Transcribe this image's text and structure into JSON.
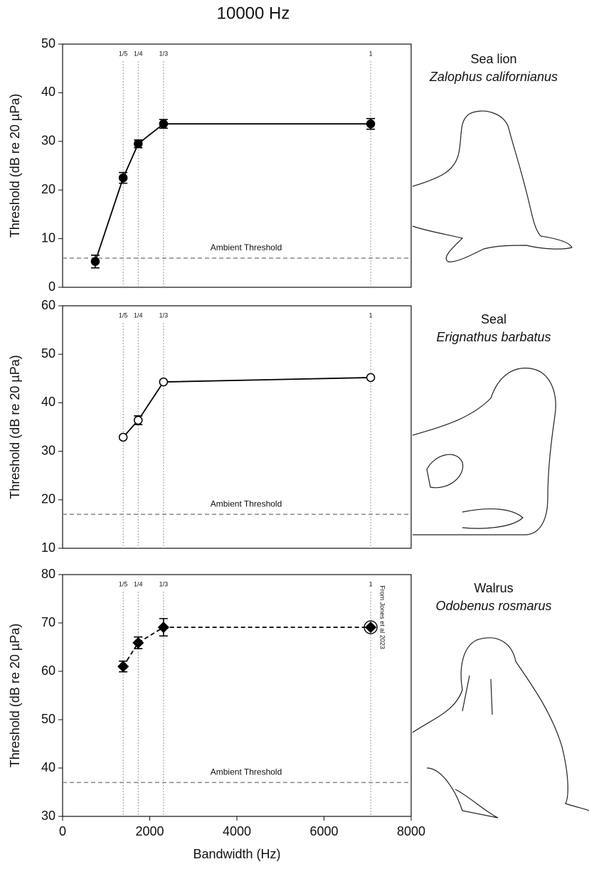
{
  "title": "10000 Hz",
  "chart_data": [
    {
      "type": "line",
      "x": [
        750,
        1390,
        1735,
        2316,
        7071
      ],
      "values": [
        5.3,
        22.5,
        29.5,
        33.6,
        33.6
      ],
      "errors": [
        1.3,
        1.1,
        0.8,
        0.9,
        1.1
      ],
      "marker": "circle",
      "marker_fill": "#000000",
      "color": "#000000",
      "linestyle": "solid",
      "xlim": [
        0,
        8000
      ],
      "ylim": [
        0,
        50
      ],
      "yticks": [
        0,
        10,
        20,
        30,
        40,
        50
      ],
      "ylabel": "Threshold (dB re 20 µPa)",
      "reference_lines": [
        {
          "value": 1390,
          "label": "1/5"
        },
        {
          "value": 1735,
          "label": "1/4"
        },
        {
          "value": 2316,
          "label": "1/3"
        },
        {
          "value": 7071,
          "label": "1"
        }
      ],
      "hline": {
        "value": 6,
        "label": "Ambient Threshold"
      },
      "species": "Sea lion",
      "species_latin": "Zalophus californianus"
    },
    {
      "type": "line",
      "x": [
        1390,
        1735,
        2316,
        7071
      ],
      "values": [
        32.9,
        36.4,
        44.3,
        45.2
      ],
      "errors": [
        null,
        0.9,
        null,
        null
      ],
      "marker": "circle",
      "marker_fill": "#ffffff",
      "color": "#000000",
      "linestyle": "solid",
      "xlim": [
        0,
        8000
      ],
      "ylim": [
        10,
        60
      ],
      "yticks": [
        10,
        20,
        30,
        40,
        50,
        60
      ],
      "ylabel": "Threshold (dB re 20 µPa)",
      "reference_lines": [
        {
          "value": 1390,
          "label": "1/5"
        },
        {
          "value": 1735,
          "label": "1/4"
        },
        {
          "value": 2316,
          "label": "1/3"
        },
        {
          "value": 7071,
          "label": "1"
        }
      ],
      "hline": {
        "value": 17,
        "label": "Ambient Threshold"
      },
      "species": "Seal",
      "species_latin": "Erignathus barbatus"
    },
    {
      "type": "line",
      "x": [
        1390,
        1735,
        2316,
        7071
      ],
      "values": [
        61,
        65.9,
        69.1,
        69.1
      ],
      "errors": [
        1.1,
        1.2,
        1.8,
        null
      ],
      "marker": "diamond",
      "marker_fill": "#000000",
      "color": "#000000",
      "linestyle": "dashed",
      "xlim": [
        0,
        8000
      ],
      "ylim": [
        30,
        80
      ],
      "yticks": [
        30,
        40,
        50,
        60,
        70,
        80
      ],
      "ylabel": "Threshold (dB re 20 µPa)",
      "xticks": [
        0,
        2000,
        4000,
        6000,
        8000
      ],
      "xlabel": "Bandwidth (Hz)",
      "reference_lines": [
        {
          "value": 1390,
          "label": "1/5"
        },
        {
          "value": 1735,
          "label": "1/4"
        },
        {
          "value": 2316,
          "label": "1/3"
        },
        {
          "value": 7071,
          "label": "1"
        }
      ],
      "hline": {
        "value": 37,
        "label": "Ambient Threshold"
      },
      "annotation": "From Jones et al 2023",
      "species": "Walrus",
      "species_latin": "Odobenus rosmarus"
    }
  ]
}
